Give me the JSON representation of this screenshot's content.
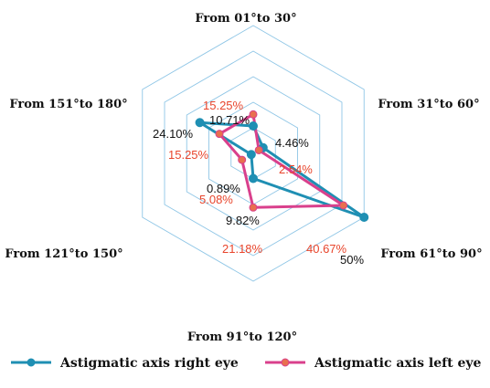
{
  "chart_data": {
    "type": "radar",
    "categories": [
      "From 01°to 30°",
      "From 31°to 60°",
      "From 61°to 90°",
      "From 91°to 120°",
      "From 121°to 150°",
      "From 151°to 180°"
    ],
    "rmax": 50,
    "rings": 5,
    "series": [
      {
        "name": "Astigmatic axis right eye",
        "color": "#1f8fb3",
        "values": [
          10.71,
          4.46,
          50,
          9.82,
          0.89,
          24.1
        ],
        "labels": [
          "10.71%",
          "4.46%",
          "50%",
          "9.82%",
          "0.89%",
          "24.10%"
        ]
      },
      {
        "name": "Astigmatic axis left eye",
        "color": "#d9408c",
        "marker": "#e8704f",
        "values": [
          15.25,
          2.54,
          40.67,
          21.18,
          5.08,
          15.25
        ],
        "labels": [
          "15.25%",
          "2.54%",
          "40.67%",
          "21.18%",
          "5.08%",
          "15.25%"
        ]
      }
    ],
    "legend_position": "bottom",
    "grid": true
  }
}
